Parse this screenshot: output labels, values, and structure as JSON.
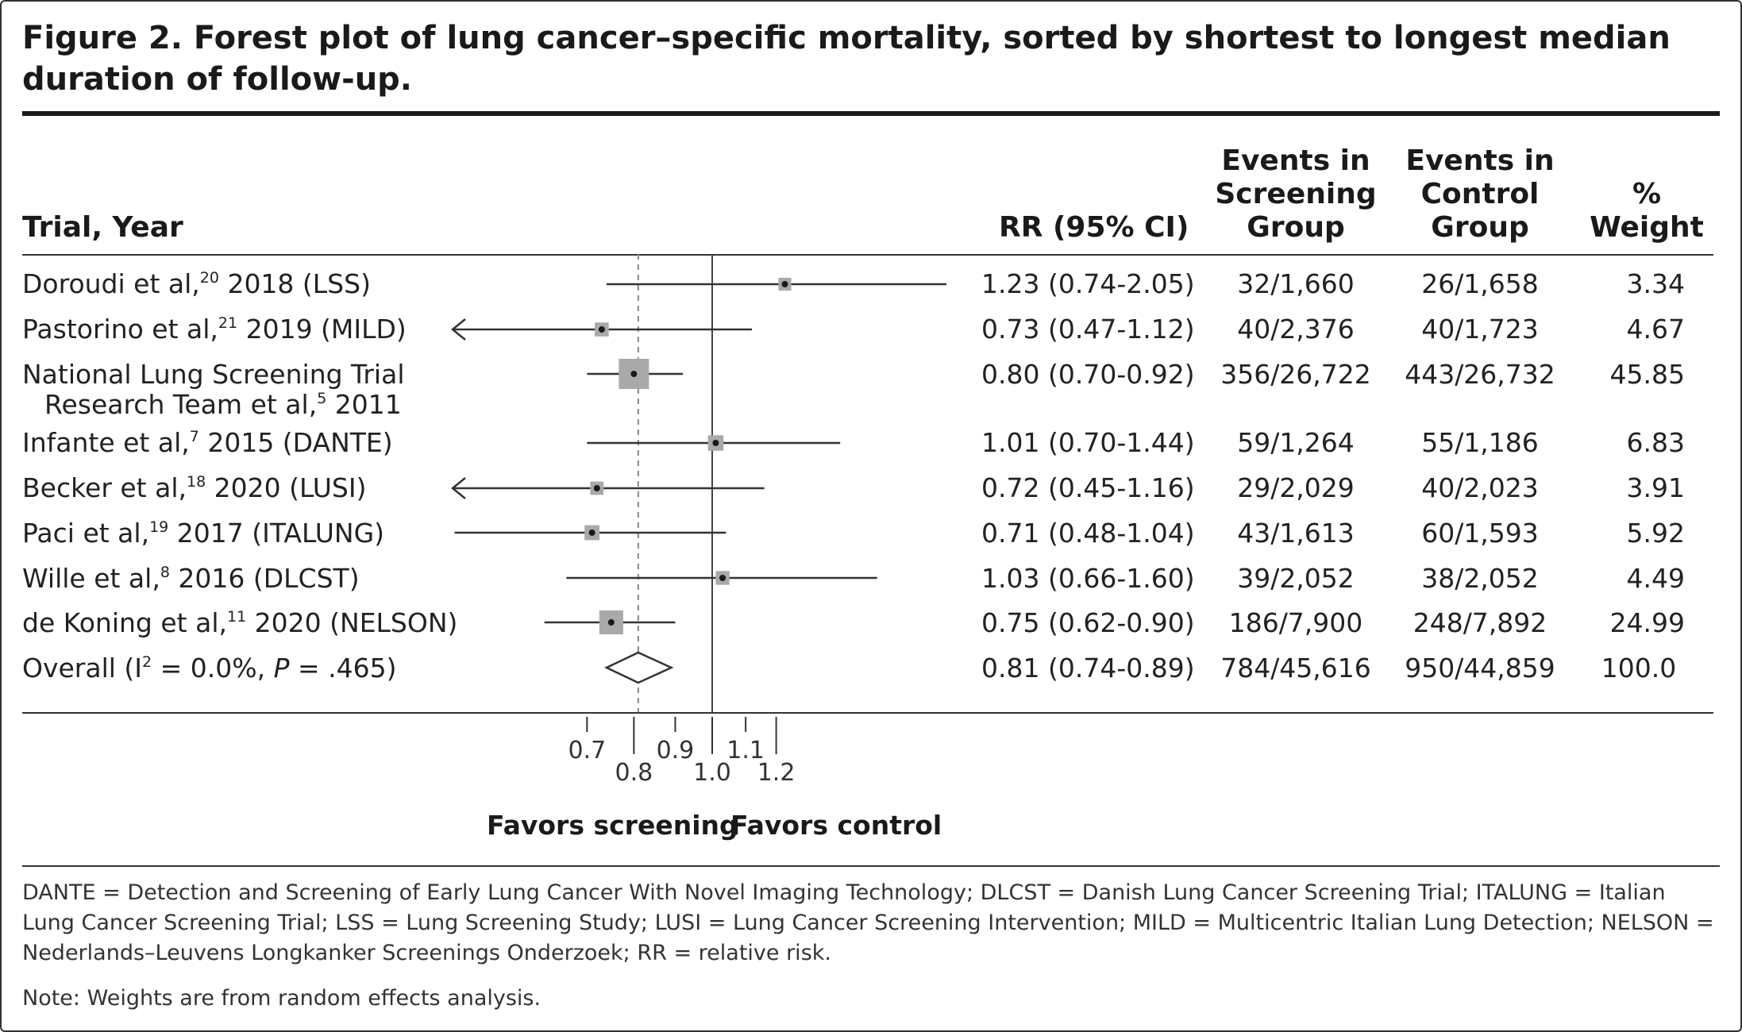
{
  "figure": {
    "title": "Figure 2. Forest plot of lung cancer–specific mortality, sorted by shortest to longest median duration of follow-up."
  },
  "headers": {
    "trial": "Trial, Year",
    "rr": "RR (95% CI)",
    "screening": [
      "Events in",
      "Screening",
      "Group"
    ],
    "control": [
      "Events in",
      "Control",
      "Group"
    ],
    "weight": [
      "%",
      "Weight"
    ]
  },
  "rows": [
    {
      "label_pre": "Doroudi et al,",
      "ref": "20",
      "label_post": " 2018 (LSS)",
      "label_line2": "",
      "rr_text": "1.23 (0.74-2.05)",
      "screening": "32/1,660",
      "control": "26/1,658",
      "weight": "3.34"
    },
    {
      "label_pre": "Pastorino et al,",
      "ref": "21",
      "label_post": " 2019 (MILD)",
      "label_line2": "",
      "rr_text": "0.73 (0.47-1.12)",
      "screening": "40/2,376",
      "control": "40/1,723",
      "weight": "4.67"
    },
    {
      "label_pre": "National Lung Screening Trial",
      "ref": "",
      "label_post": "",
      "label_line2_pre": "Research Team et al,",
      "label_line2_ref": "5",
      "label_line2_post": " 2011",
      "rr_text": "0.80 (0.70-0.92)",
      "screening": "356/26,722",
      "control": "443/26,732",
      "weight": "45.85"
    },
    {
      "label_pre": "Infante et al,",
      "ref": "7",
      "label_post": " 2015 (DANTE)",
      "label_line2": "",
      "rr_text": "1.01 (0.70-1.44)",
      "screening": "59/1,264",
      "control": "55/1,186",
      "weight": "6.83"
    },
    {
      "label_pre": "Becker et al,",
      "ref": "18",
      "label_post": " 2020 (LUSI)",
      "label_line2": "",
      "rr_text": "0.72 (0.45-1.16)",
      "screening": "29/2,029",
      "control": "40/2,023",
      "weight": "3.91"
    },
    {
      "label_pre": "Paci et al,",
      "ref": "19",
      "label_post": " 2017 (ITALUNG)",
      "label_line2": "",
      "rr_text": "0.71 (0.48-1.04)",
      "screening": "43/1,613",
      "control": "60/1,593",
      "weight": "5.92"
    },
    {
      "label_pre": "Wille et al,",
      "ref": "8",
      "label_post": " 2016 (DLCST)",
      "label_line2": "",
      "rr_text": "1.03 (0.66-1.60)",
      "screening": "39/2,052",
      "control": "38/2,052",
      "weight": "4.49"
    },
    {
      "label_pre": "de Koning et al,",
      "ref": "11",
      "label_post": " 2020 (NELSON)",
      "label_line2": "",
      "rr_text": "0.75 (0.62-0.90)",
      "screening": "186/7,900",
      "control": "248/7,892",
      "weight": "24.99"
    }
  ],
  "overall": {
    "label_pre": "Overall (I",
    "label_sup": "2",
    "label_mid": " = 0.0%, ",
    "label_p": "P",
    "label_post": " = .465)",
    "rr_text": "0.81 (0.74-0.89)",
    "screening": "784/45,616",
    "control": "950/44,859",
    "weight": "100.0"
  },
  "favors": {
    "left": "Favors screening",
    "right": "Favors control"
  },
  "footnote": "DANTE = Detection and Screening of Early Lung Cancer With Novel Imaging Technology; DLCST = Danish Lung Cancer Screening Trial; ITALUNG = Italian Lung Cancer Screening Trial; LSS = Lung Screening Study; LUSI = Lung Cancer Screening Intervention; MILD = Multicentric Italian Lung Detection; NELSON = Nederlands–Leuvens Longkanker Screenings Onderzoek; RR = relative risk.",
  "note": "Note: Weights are from random effects analysis.",
  "chart_data": {
    "type": "forest",
    "title": "Figure 2. Forest plot of lung cancer–specific mortality, sorted by shortest to longest median duration of follow-up.",
    "x_scale": "log",
    "null_line": 1.0,
    "overall_dashed_line": 0.81,
    "ticks": [
      0.7,
      0.8,
      0.9,
      1.0,
      1.1,
      1.2
    ],
    "tick_labels": [
      "0.7",
      "0.8",
      "0.9",
      "1.0",
      "1.1",
      "1.2"
    ],
    "studies": [
      {
        "name": "Doroudi et al, 2018 (LSS)",
        "rr": 1.23,
        "lo": 0.74,
        "hi": 2.05,
        "weight": 3.34
      },
      {
        "name": "Pastorino et al, 2019 (MILD)",
        "rr": 0.73,
        "lo": 0.47,
        "hi": 1.12,
        "weight": 4.67
      },
      {
        "name": "National Lung Screening Trial Research Team et al, 2011",
        "rr": 0.8,
        "lo": 0.7,
        "hi": 0.92,
        "weight": 45.85
      },
      {
        "name": "Infante et al, 2015 (DANTE)",
        "rr": 1.01,
        "lo": 0.7,
        "hi": 1.44,
        "weight": 6.83
      },
      {
        "name": "Becker et al, 2020 (LUSI)",
        "rr": 0.72,
        "lo": 0.45,
        "hi": 1.16,
        "weight": 3.91
      },
      {
        "name": "Paci et al, 2017 (ITALUNG)",
        "rr": 0.71,
        "lo": 0.48,
        "hi": 1.04,
        "weight": 5.92
      },
      {
        "name": "Wille et al, 2016 (DLCST)",
        "rr": 1.03,
        "lo": 0.66,
        "hi": 1.6,
        "weight": 4.49
      },
      {
        "name": "de Koning et al, 2020 (NELSON)",
        "rr": 0.75,
        "lo": 0.62,
        "hi": 0.9,
        "weight": 24.99
      }
    ],
    "overall": {
      "rr": 0.81,
      "lo": 0.74,
      "hi": 0.89,
      "i2": "0.0%",
      "p": ".465"
    },
    "xlabel_left": "Favors screening",
    "xlabel_right": "Favors control"
  }
}
